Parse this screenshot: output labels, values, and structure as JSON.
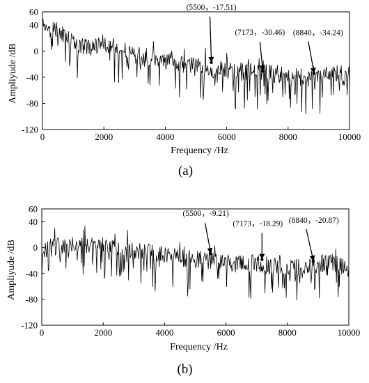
{
  "chart_data": [
    {
      "type": "line",
      "panel_label": "(a)",
      "xlabel": "Frequency /Hz",
      "ylabel": "Ampliyude /dB",
      "xlim": [
        0,
        10000
      ],
      "ylim": [
        -120,
        60
      ],
      "x_ticks": [
        "0",
        "2000",
        "4000",
        "6000",
        "8000",
        "10000"
      ],
      "y_ticks": [
        "60",
        "40",
        "0",
        "-40",
        "-80",
        "-120"
      ],
      "grid": false,
      "color": "#000000",
      "trend": [
        [
          0,
          40
        ],
        [
          500,
          30
        ],
        [
          1000,
          15
        ],
        [
          1500,
          5
        ],
        [
          2000,
          12
        ],
        [
          2500,
          5
        ],
        [
          3000,
          -5
        ],
        [
          4000,
          -15
        ],
        [
          5000,
          -25
        ],
        [
          5500,
          -27
        ],
        [
          6000,
          -30
        ],
        [
          7000,
          -32
        ],
        [
          8000,
          -38
        ],
        [
          8500,
          -40
        ],
        [
          9000,
          -36
        ],
        [
          9500,
          -33
        ],
        [
          10000,
          -35
        ]
      ],
      "annotations": [
        {
          "x": 5500,
          "y": -17.51,
          "label": "(5500，-17.51)"
        },
        {
          "x": 7173,
          "y": -30.46,
          "label": "(7173，-30.46)"
        },
        {
          "x": 8840,
          "y": -34.24,
          "label": "(8840，-34.24)"
        }
      ]
    },
    {
      "type": "line",
      "panel_label": "(b)",
      "xlabel": "Frequency /Hz",
      "ylabel": "Ampliyude /dB",
      "xlim": [
        0,
        10000
      ],
      "ylim": [
        -120,
        60
      ],
      "x_ticks": [
        "0",
        "2000",
        "4000",
        "6000",
        "8000",
        "10000"
      ],
      "y_ticks": [
        "60",
        "40",
        "0",
        "-40",
        "-80",
        "-120"
      ],
      "grid": false,
      "color": "#000000",
      "trend": [
        [
          0,
          -10
        ],
        [
          300,
          0
        ],
        [
          1000,
          5
        ],
        [
          2000,
          0
        ],
        [
          3000,
          -5
        ],
        [
          4000,
          -12
        ],
        [
          5000,
          -18
        ],
        [
          5500,
          -20
        ],
        [
          6000,
          -25
        ],
        [
          7000,
          -25
        ],
        [
          8000,
          -32
        ],
        [
          9000,
          -25
        ],
        [
          9500,
          -22
        ],
        [
          10000,
          -35
        ]
      ],
      "annotations": [
        {
          "x": 5500,
          "y": -9.21,
          "label": "(5500，-9.21)"
        },
        {
          "x": 7173,
          "y": -18.29,
          "label": "(7173，-18.29)"
        },
        {
          "x": 8840,
          "y": -20.87,
          "label": "(8840，-20.87)"
        }
      ]
    }
  ]
}
